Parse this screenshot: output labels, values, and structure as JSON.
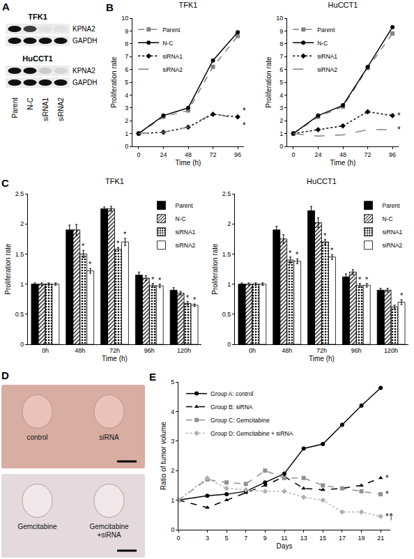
{
  "blot": {
    "panel": "A",
    "lanes": [
      "Parent",
      "N-C",
      "siRNA1",
      "siRNA2"
    ],
    "cell_lines": [
      {
        "name": "TFK1",
        "rows": [
          {
            "label": "KPNA2",
            "intensity": [
              1,
              0.8,
              0.05,
              0.05
            ]
          },
          {
            "label": "GAPDH",
            "intensity": [
              1,
              1,
              1,
              1
            ]
          }
        ]
      },
      {
        "name": "HuCCT1",
        "rows": [
          {
            "label": "KPNA2",
            "intensity": [
              1,
              1,
              0.15,
              0.1
            ]
          },
          {
            "label": "GAPDH",
            "intensity": [
              1,
              1,
              1,
              1
            ]
          }
        ]
      }
    ]
  },
  "photos": {
    "panel": "D",
    "images": [
      {
        "labels": [
          "control",
          "siRNA"
        ]
      },
      {
        "labels": [
          "Gemcitabine",
          "Gemcitabine +siRNA"
        ]
      }
    ]
  },
  "chart_data": [
    {
      "panel": "B",
      "type": "line",
      "title": "TFK1",
      "x_label": "Time (h)",
      "y_label": "Proliferation rate",
      "x": [
        0,
        24,
        48,
        72,
        96
      ],
      "xlim": [
        -6,
        102
      ],
      "xticks": [
        0,
        24,
        48,
        72,
        96
      ],
      "ylim": [
        0,
        10
      ],
      "yticks": [
        0,
        1,
        2,
        3,
        4,
        5,
        6,
        7,
        8,
        9,
        10
      ],
      "grid": false,
      "legend": "top-left",
      "series": [
        {
          "name": "Parent",
          "color": "#808080",
          "marker": "square",
          "line_style": "dash",
          "values": [
            1,
            2.3,
            2.8,
            6.2,
            8.6
          ]
        },
        {
          "name": "N-C",
          "color": "#000000",
          "marker": "circle",
          "line_style": "solid",
          "values": [
            1,
            2.4,
            3.0,
            6.7,
            8.9
          ]
        },
        {
          "name": "siRNA1",
          "color": "#000000",
          "marker": "diamond",
          "line_style": "dot",
          "values": [
            1,
            1.1,
            1.5,
            2.5,
            2.3
          ]
        },
        {
          "name": "siRNA2",
          "color": "#808080",
          "marker": "none",
          "line_style": "longdash",
          "values": [
            1,
            1.1,
            1.5,
            2.6,
            2.1
          ]
        }
      ],
      "annotations": [
        {
          "series": "siRNA1",
          "x": 96,
          "text": "*"
        },
        {
          "series": "siRNA2",
          "x": 96,
          "text": "*"
        }
      ]
    },
    {
      "type": "line",
      "title": "HuCCT1",
      "x_label": "Time (h)",
      "y_label": "Proliferation rate",
      "x": [
        0,
        24,
        48,
        72,
        96
      ],
      "xlim": [
        -6,
        102
      ],
      "xticks": [
        0,
        24,
        48,
        72,
        96
      ],
      "ylim": [
        0,
        10
      ],
      "yticks": [
        0,
        1,
        2,
        3,
        4,
        5,
        6,
        7,
        8,
        9,
        10
      ],
      "grid": false,
      "legend": "top-left",
      "series": [
        {
          "name": "Parent",
          "color": "#808080",
          "marker": "square",
          "line_style": "dash",
          "values": [
            1,
            2.3,
            3.1,
            6.1,
            8.8
          ]
        },
        {
          "name": "N-C",
          "color": "#000000",
          "marker": "circle",
          "line_style": "solid",
          "values": [
            1,
            2.4,
            3.2,
            6.2,
            9.3
          ]
        },
        {
          "name": "siRNA1",
          "color": "#000000",
          "marker": "diamond",
          "line_style": "dot",
          "values": [
            1,
            1.3,
            1.6,
            2.7,
            2.4
          ]
        },
        {
          "name": "siRNA2",
          "color": "#808080",
          "marker": "none",
          "line_style": "longdash",
          "values": [
            1,
            0.8,
            0.9,
            1.3,
            1.3
          ]
        }
      ],
      "annotations": [
        {
          "series": "siRNA1",
          "x": 96,
          "text": "*"
        },
        {
          "series": "siRNA2",
          "x": 96,
          "text": "*"
        }
      ]
    },
    {
      "panel": "C",
      "type": "bar",
      "title": "TFK1",
      "x_label": "Time (h)",
      "y_label": "Proliferation rate",
      "categories": [
        "0h",
        "48h",
        "72h",
        "96h",
        "120h"
      ],
      "ylim": [
        0,
        2.5
      ],
      "yticks": [
        0,
        0.5,
        1,
        1.5,
        2,
        2.5
      ],
      "grid": false,
      "legend": "top-right",
      "series": [
        {
          "name": "Parent",
          "color": "#000000",
          "marker": "solid",
          "values": [
            1,
            1.9,
            2.25,
            1.15,
            0.9
          ],
          "errors": [
            0.02,
            0.08,
            0.03,
            0.05,
            0.04
          ]
        },
        {
          "name": "N-C",
          "color": "#ffffff",
          "marker": "hatch",
          "values": [
            1,
            1.9,
            2.25,
            1.1,
            0.85
          ],
          "errors": [
            0.02,
            0.09,
            0.04,
            0.04,
            0.03
          ]
        },
        {
          "name": "siRNA1",
          "color": "#808080",
          "marker": "dotted",
          "values": [
            1,
            1.5,
            1.58,
            0.98,
            0.68
          ],
          "errors": [
            0.02,
            0.06,
            0.03,
            0.03,
            0.03
          ]
        },
        {
          "name": "siRNA2",
          "color": "#ffffff",
          "marker": "open",
          "values": [
            1,
            1.22,
            1.7,
            0.97,
            0.65
          ],
          "errors": [
            0.02,
            0.04,
            0.06,
            0.03,
            0.02
          ]
        }
      ],
      "annotations": [
        {
          "category": "48h",
          "series": "siRNA1",
          "text": "*"
        },
        {
          "category": "48h",
          "series": "siRNA2",
          "text": "*"
        },
        {
          "category": "72h",
          "series": "siRNA1",
          "text": "*"
        },
        {
          "category": "72h",
          "series": "siRNA2",
          "text": "*"
        },
        {
          "category": "96h",
          "series": "siRNA1",
          "text": "*"
        },
        {
          "category": "96h",
          "series": "siRNA2",
          "text": "*"
        },
        {
          "category": "120h",
          "series": "siRNA1",
          "text": "*"
        },
        {
          "category": "120h",
          "series": "siRNA2",
          "text": "*"
        }
      ]
    },
    {
      "type": "bar",
      "title": "HuCCT1",
      "x_label": "Time (h)",
      "y_label": "Proliferation rate",
      "categories": [
        "0h",
        "48h",
        "72h",
        "96h",
        "120h"
      ],
      "ylim": [
        0,
        2.5
      ],
      "yticks": [
        0,
        0.5,
        1,
        1.5,
        2,
        2.5
      ],
      "grid": false,
      "legend": "top-right",
      "series": [
        {
          "name": "Parent",
          "color": "#000000",
          "marker": "solid",
          "values": [
            1,
            1.9,
            2.22,
            1.12,
            0.9
          ],
          "errors": [
            0.02,
            0.06,
            0.07,
            0.05,
            0.03
          ]
        },
        {
          "name": "N-C",
          "color": "#ffffff",
          "marker": "hatch",
          "values": [
            1,
            1.75,
            2.02,
            1.2,
            0.9
          ],
          "errors": [
            0.02,
            0.07,
            0.08,
            0.04,
            0.03
          ]
        },
        {
          "name": "siRNA1",
          "color": "#808080",
          "marker": "dotted",
          "values": [
            1,
            1.4,
            1.7,
            0.98,
            0.62
          ],
          "errors": [
            0.02,
            0.05,
            0.04,
            0.03,
            0.03
          ]
        },
        {
          "name": "siRNA2",
          "color": "#ffffff",
          "marker": "open",
          "values": [
            1,
            1.38,
            1.45,
            0.98,
            0.7
          ],
          "errors": [
            0.02,
            0.04,
            0.04,
            0.03,
            0.04
          ]
        }
      ],
      "annotations": [
        {
          "category": "48h",
          "series": "siRNA1",
          "text": "*"
        },
        {
          "category": "48h",
          "series": "siRNA2",
          "text": "*"
        },
        {
          "category": "72h",
          "series": "siRNA1",
          "text": "*"
        },
        {
          "category": "72h",
          "series": "siRNA2",
          "text": "*"
        },
        {
          "category": "96h",
          "series": "siRNA1",
          "text": "*"
        },
        {
          "category": "96h",
          "series": "siRNA2",
          "text": "*"
        },
        {
          "category": "120h",
          "series": "siRNA2",
          "text": "*"
        }
      ]
    },
    {
      "panel": "E",
      "type": "line",
      "x_label": "Days",
      "y_label": "Ratio of tumor volume",
      "x": [
        0,
        3,
        5,
        7,
        9,
        11,
        13,
        15,
        17,
        19,
        21
      ],
      "xlim": [
        0,
        22
      ],
      "xticks": [
        0,
        3,
        5,
        7,
        9,
        11,
        13,
        15,
        17,
        19,
        21
      ],
      "ylim": [
        0,
        5
      ],
      "yticks": [
        0,
        1,
        2,
        3,
        4,
        5
      ],
      "grid": false,
      "legend": "top-left",
      "series": [
        {
          "name": "Group A: control",
          "color": "#000000",
          "marker": "circle",
          "line_style": "solid",
          "values": [
            1,
            1.15,
            1.2,
            1.3,
            1.6,
            1.9,
            2.75,
            2.9,
            3.55,
            4.2,
            4.8
          ]
        },
        {
          "name": "Group B: siRNA",
          "color": "#000000",
          "marker": "triangle-up",
          "line_style": "dash",
          "values": [
            1,
            0.75,
            1.0,
            1.25,
            1.5,
            1.8,
            1.4,
            1.35,
            1.4,
            1.5,
            1.75
          ]
        },
        {
          "name": "Group C: Gemcitabine",
          "color": "#909090",
          "marker": "square",
          "line_style": "dash",
          "values": [
            1,
            1.7,
            1.6,
            1.55,
            2.0,
            1.75,
            1.75,
            1.5,
            1.4,
            1.3,
            1.2
          ]
        },
        {
          "name": "Group D: Gemcitabine + siRNA",
          "color": "#b0b0b0",
          "marker": "diamond",
          "line_style": "dot",
          "values": [
            1,
            1.75,
            1.4,
            1.35,
            1.3,
            1.3,
            1.1,
            1.0,
            0.6,
            0.6,
            0.45
          ]
        }
      ],
      "annotations": [
        {
          "series": "Group B: siRNA",
          "x": 21,
          "text": "*"
        },
        {
          "series": "Group C: Gemcitabine",
          "x": 21,
          "text": "*"
        },
        {
          "series": "Group D: Gemcitabine + siRNA",
          "x": 21,
          "text": "*†"
        }
      ]
    }
  ]
}
